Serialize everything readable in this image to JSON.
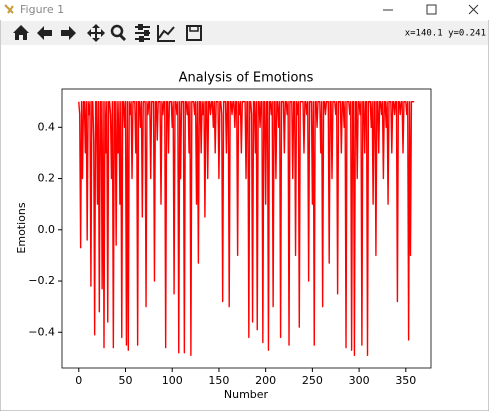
{
  "window": {
    "title": "Figure 1",
    "status": "x=140.1 y=0.241"
  },
  "chart_data": {
    "type": "line",
    "title": "Analysis of Emotions",
    "x_label": "Number",
    "y_label": "Emotions",
    "color": "#ff0000",
    "values": [
      0.5,
      0.45,
      -0.07,
      0.5,
      0.2,
      0.5,
      0.5,
      0.3,
      0.5,
      -0.04,
      0.5,
      0.45,
      0.5,
      -0.22,
      0.5,
      0.5,
      0.35,
      -0.41,
      0.5,
      0.5,
      0.1,
      0.5,
      -0.32,
      0.5,
      0.5,
      -0.23,
      0.5,
      -0.46,
      0.5,
      0.3,
      0.5,
      -0.36,
      0.5,
      0.5,
      0.45,
      0.2,
      0.5,
      -0.46,
      0.5,
      0.5,
      -0.06,
      0.5,
      0.3,
      0.5,
      0.1,
      0.5,
      -0.42,
      0.5,
      0.5,
      0.4,
      0.5,
      -0.45,
      0.5,
      -0.47,
      0.5,
      0.45,
      0.5,
      0.2,
      0.5,
      0.5,
      0.5,
      0.3,
      0.5,
      -0.45,
      0.5,
      0.5,
      0.4,
      0.5,
      0.05,
      0.5,
      0.5,
      0.5,
      -0.3,
      0.5,
      0.45,
      0.5,
      0.5,
      0.2,
      0.5,
      0.5,
      0.5,
      -0.2,
      0.5,
      0.5,
      0.35,
      0.5,
      0.5,
      0.5,
      0.1,
      0.5,
      0.45,
      0.5,
      0.5,
      -0.46,
      0.5,
      0.5,
      0.3,
      0.5,
      0.5,
      0.5,
      0.4,
      0.5,
      -0.25,
      0.5,
      0.5,
      0.45,
      0.5,
      -0.48,
      0.5,
      0.2,
      0.5,
      0.5,
      0.5,
      -0.48,
      0.5,
      0.5,
      0.45,
      0.5,
      0.3,
      0.5,
      -0.49,
      0.5,
      0.5,
      0.5,
      0.45,
      0.5,
      0.1,
      0.5,
      -0.13,
      0.5,
      0.5,
      0.3,
      0.5,
      0.45,
      0.5,
      0.05,
      0.5,
      0.5,
      0.2,
      0.5,
      0.5,
      0.45,
      0.5,
      0.5,
      0.4,
      0.5,
      0.3,
      0.5,
      0.5,
      0.5,
      0.2,
      0.5,
      0.5,
      0.45,
      -0.28,
      0.5,
      0.5,
      0.5,
      0.3,
      0.5,
      0.5,
      -0.3,
      0.5,
      0.5,
      0.45,
      0.5,
      0.5,
      0.4,
      0.5,
      0.5,
      -0.1,
      0.5,
      0.45,
      0.5,
      0.3,
      0.5,
      0.5,
      0.5,
      0.5,
      0.2,
      0.5,
      0.5,
      -0.42,
      0.5,
      0.5,
      0.45,
      -0.36,
      0.5,
      0.5,
      0.3,
      0.5,
      -0.39,
      0.5,
      0.5,
      0.4,
      0.5,
      0.5,
      -0.44,
      0.5,
      0.5,
      0.1,
      0.5,
      0.5,
      -0.47,
      0.5,
      0.5,
      0.45,
      0.5,
      -0.3,
      0.5,
      0.5,
      0.2,
      0.5,
      0.5,
      0.4,
      0.5,
      -0.42,
      0.5,
      0.5,
      0.5,
      0.3,
      0.5,
      0.5,
      0.45,
      0.5,
      -0.45,
      0.5,
      0.5,
      0.5,
      0.2,
      0.5,
      0.5,
      -0.1,
      0.5,
      0.45,
      0.5,
      -0.38,
      0.5,
      0.5,
      0.5,
      0.5,
      0.3,
      0.5,
      0.5,
      0.45,
      0.5,
      -0.2,
      0.5,
      0.5,
      0.5,
      0.1,
      0.5,
      -0.45,
      0.5,
      0.5,
      0.4,
      0.5,
      0.5,
      0.5,
      0.3,
      0.5,
      -0.3,
      0.5,
      0.5,
      0.45,
      0.5,
      0.5,
      0.5,
      -0.13,
      0.5,
      0.5,
      0.2,
      0.5,
      0.5,
      0.5,
      0.45,
      0.5,
      -0.25,
      0.5,
      0.5,
      0.5,
      0.3,
      0.5,
      0.5,
      0.4,
      0.5,
      -0.46,
      0.5,
      0.5,
      0.5,
      0.45,
      0.5,
      -0.47,
      0.5,
      0.5,
      -0.49,
      0.5,
      0.5,
      0.2,
      0.5,
      0.5,
      0.45,
      0.5,
      -0.45,
      0.5,
      0.5,
      0.3,
      0.5,
      0.5,
      -0.49,
      0.5,
      0.5,
      0.5,
      0.4,
      0.5,
      0.1,
      0.5,
      0.5,
      -0.1,
      0.5,
      0.5,
      0.3,
      0.5,
      0.5,
      0.45,
      0.5,
      0.2,
      0.5,
      0.5,
      0.4,
      0.5,
      0.1,
      0.5,
      0.5,
      0.5,
      0.3,
      0.5,
      0.5,
      0.45,
      0.5,
      0.5,
      -0.28,
      0.5,
      0.5,
      0.45,
      0.5,
      0.5,
      0.3,
      0.5,
      0.5,
      0.5,
      0.45,
      0.5,
      -0.43,
      0.5,
      -0.1,
      0.5,
      0.5,
      0.5,
      0.5
    ],
    "xlim": [
      -17.95,
      376.95
    ],
    "xticks": [
      0,
      50,
      100,
      150,
      200,
      250,
      300,
      350
    ],
    "ylim": [
      -0.5395,
      0.5495
    ],
    "yticks": [
      {
        "value": -0.4,
        "label": "−0.4"
      },
      {
        "value": -0.2,
        "label": "−0.2"
      },
      {
        "value": 0,
        "label": "0.0"
      },
      0.2,
      0.4
    ]
  }
}
